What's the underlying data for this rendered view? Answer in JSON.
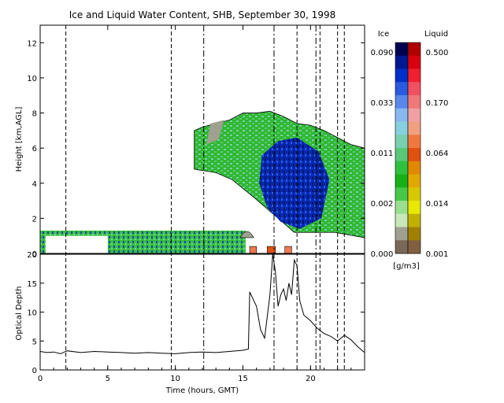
{
  "chart_data": [
    {
      "type": "heatmap",
      "title": "Ice and Liquid Water Content, SHB, September 30, 1998",
      "ylabel": "Height [km,AGL]",
      "xlim": [
        0,
        24
      ],
      "ylim": [
        0,
        13
      ],
      "y_ticks": [
        0,
        2,
        4,
        6,
        8,
        10,
        12
      ],
      "legend_position": "right",
      "colorbars": [
        {
          "name": "Ice",
          "tick_labels": [
            "0.090",
            "0.033",
            "0.011",
            "0.002",
            "0.000"
          ],
          "colors": [
            "#000050",
            "#001890",
            "#0030c8",
            "#2a5ae0",
            "#5a88ea",
            "#88b8f0",
            "#88d0e0",
            "#78d0b0",
            "#58c878",
            "#30c040",
            "#18b018",
            "#48c848",
            "#98e090",
            "#c8e8b8",
            "#a0a090",
            "#786858"
          ]
        },
        {
          "name": "Liquid",
          "tick_labels": [
            "0.500",
            "0.170",
            "0.064",
            "0.014",
            "0.001"
          ],
          "colors": [
            "#b00000",
            "#d80010",
            "#f02030",
            "#f05060",
            "#f07878",
            "#f0a0a0",
            "#f0a080",
            "#f07840",
            "#e05010",
            "#e08800",
            "#e0a800",
            "#d8c800",
            "#e8e800",
            "#c0b000",
            "#a08000",
            "#806040"
          ]
        }
      ],
      "units": "[g/m3]",
      "ice_cloud": [
        {
          "x": 11.4,
          "top": 7.0
        },
        {
          "x": 12.0,
          "top": 7.2
        },
        {
          "x": 13.0,
          "top": 7.4
        },
        {
          "x": 14.0,
          "top": 7.6
        },
        {
          "x": 15.0,
          "top": 8.0
        },
        {
          "x": 16.0,
          "top": 8.0
        },
        {
          "x": 17.0,
          "top": 8.1
        },
        {
          "x": 18.0,
          "top": 7.8
        },
        {
          "x": 19.0,
          "top": 7.4
        },
        {
          "x": 20.0,
          "top": 7.3
        },
        {
          "x": 21.0,
          "top": 7.0
        },
        {
          "x": 22.0,
          "top": 6.6
        },
        {
          "x": 23.0,
          "top": 6.2
        },
        {
          "x": 24.0,
          "top": 6.0
        }
      ],
      "liquid_layer": {
        "x_start": 0,
        "x_end": 15.2,
        "base": 0.0,
        "top": 1.3
      }
    },
    {
      "type": "line",
      "xlabel": "Time (hours, GMT)",
      "ylabel": "Optical Depth",
      "xlim": [
        0,
        24
      ],
      "ylim": [
        0,
        20
      ],
      "x_ticks": [
        0,
        5,
        10,
        15,
        20
      ],
      "y_ticks": [
        0,
        5,
        10,
        15,
        20
      ],
      "vertical_markers": [
        1.9,
        9.7,
        12.1,
        17.3,
        19.0,
        20.4,
        20.7,
        22.0,
        22.5
      ],
      "series": [
        {
          "x": [
            0,
            0.5,
            1.0,
            1.5,
            2.0,
            3.0,
            4.0,
            5.0,
            6.0,
            7.0,
            8.0,
            9.0,
            10.0,
            11.0,
            12.0,
            13.0,
            14.0,
            15.0,
            15.4,
            15.5,
            15.8,
            16.0,
            16.3,
            16.6,
            17.0,
            17.2,
            17.4,
            17.6,
            17.8,
            18.0,
            18.2,
            18.4,
            18.6,
            18.8,
            19.0,
            19.2,
            19.5,
            20.0,
            20.5,
            21.0,
            21.5,
            22.0,
            22.5,
            23.0,
            23.5,
            24.0
          ],
          "y": [
            3.2,
            3.0,
            3.1,
            2.8,
            3.3,
            3.0,
            3.2,
            3.1,
            3.0,
            2.9,
            3.0,
            2.9,
            2.8,
            3.0,
            3.1,
            3.0,
            3.2,
            3.4,
            3.6,
            13.5,
            12.0,
            11.0,
            7.0,
            5.5,
            13.0,
            20.0,
            17.0,
            11.0,
            13.0,
            14.0,
            12.0,
            15.0,
            13.0,
            19.0,
            18.0,
            12.0,
            9.5,
            8.5,
            7.2,
            6.3,
            5.8,
            5.0,
            6.0,
            5.2,
            4.0,
            3.0
          ]
        }
      ]
    }
  ]
}
